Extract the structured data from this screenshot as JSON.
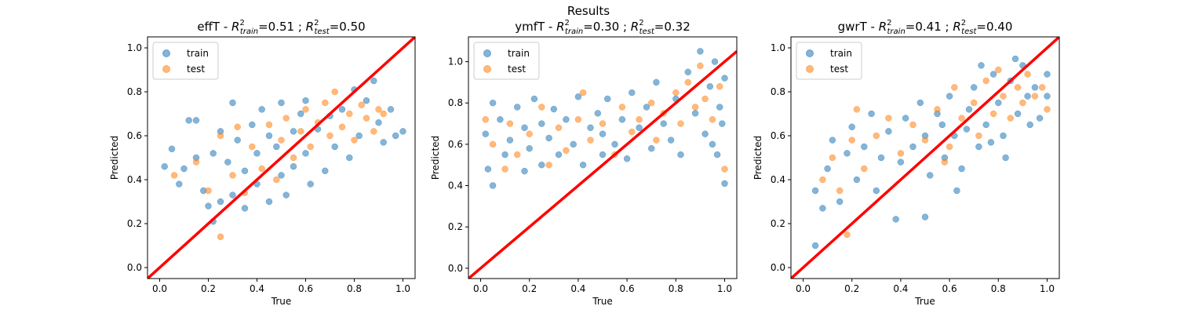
{
  "figure": {
    "suptitle": "Results"
  },
  "chart_data": [
    {
      "type": "scatter",
      "title": {
        "prefix": "effT - ",
        "r2train": "0.51",
        "r2test": "0.50"
      },
      "xlabel": "True",
      "ylabel": "Predicted",
      "xlim": [
        -0.05,
        1.05
      ],
      "ylim": [
        -0.05,
        1.05
      ],
      "xticks": [
        0.0,
        0.2,
        0.4,
        0.6,
        0.8,
        1.0
      ],
      "yticks": [
        0.0,
        0.2,
        0.4,
        0.6,
        0.8,
        1.0
      ],
      "legend": {
        "position": "top-left",
        "entries": [
          "train",
          "test"
        ]
      },
      "series": [
        {
          "name": "train",
          "color": "#1f77b4",
          "points": [
            [
              0.02,
              0.46
            ],
            [
              0.05,
              0.54
            ],
            [
              0.08,
              0.38
            ],
            [
              0.1,
              0.45
            ],
            [
              0.12,
              0.67
            ],
            [
              0.15,
              0.67
            ],
            [
              0.15,
              0.5
            ],
            [
              0.18,
              0.35
            ],
            [
              0.2,
              0.28
            ],
            [
              0.22,
              0.21
            ],
            [
              0.22,
              0.52
            ],
            [
              0.25,
              0.62
            ],
            [
              0.25,
              0.3
            ],
            [
              0.28,
              0.48
            ],
            [
              0.3,
              0.75
            ],
            [
              0.3,
              0.33
            ],
            [
              0.32,
              0.58
            ],
            [
              0.35,
              0.44
            ],
            [
              0.35,
              0.27
            ],
            [
              0.38,
              0.65
            ],
            [
              0.4,
              0.52
            ],
            [
              0.4,
              0.38
            ],
            [
              0.42,
              0.72
            ],
            [
              0.45,
              0.3
            ],
            [
              0.45,
              0.6
            ],
            [
              0.48,
              0.55
            ],
            [
              0.5,
              0.75
            ],
            [
              0.5,
              0.42
            ],
            [
              0.52,
              0.33
            ],
            [
              0.55,
              0.62
            ],
            [
              0.55,
              0.46
            ],
            [
              0.58,
              0.7
            ],
            [
              0.6,
              0.52
            ],
            [
              0.6,
              0.76
            ],
            [
              0.62,
              0.38
            ],
            [
              0.65,
              0.63
            ],
            [
              0.68,
              0.44
            ],
            [
              0.7,
              0.69
            ],
            [
              0.72,
              0.55
            ],
            [
              0.75,
              0.72
            ],
            [
              0.78,
              0.5
            ],
            [
              0.8,
              0.81
            ],
            [
              0.82,
              0.6
            ],
            [
              0.85,
              0.76
            ],
            [
              0.88,
              0.85
            ],
            [
              0.9,
              0.66
            ],
            [
              0.92,
              0.57
            ],
            [
              0.95,
              0.72
            ],
            [
              0.97,
              0.6
            ],
            [
              1.0,
              0.62
            ]
          ]
        },
        {
          "name": "test",
          "color": "#ff7f0e",
          "points": [
            [
              0.06,
              0.42
            ],
            [
              0.15,
              0.48
            ],
            [
              0.2,
              0.35
            ],
            [
              0.25,
              0.14
            ],
            [
              0.25,
              0.6
            ],
            [
              0.3,
              0.42
            ],
            [
              0.32,
              0.64
            ],
            [
              0.35,
              0.34
            ],
            [
              0.38,
              0.55
            ],
            [
              0.42,
              0.45
            ],
            [
              0.45,
              0.65
            ],
            [
              0.48,
              0.4
            ],
            [
              0.5,
              0.58
            ],
            [
              0.52,
              0.68
            ],
            [
              0.55,
              0.5
            ],
            [
              0.58,
              0.62
            ],
            [
              0.6,
              0.72
            ],
            [
              0.62,
              0.55
            ],
            [
              0.65,
              0.66
            ],
            [
              0.68,
              0.75
            ],
            [
              0.7,
              0.6
            ],
            [
              0.72,
              0.8
            ],
            [
              0.75,
              0.64
            ],
            [
              0.78,
              0.7
            ],
            [
              0.8,
              0.58
            ],
            [
              0.83,
              0.74
            ],
            [
              0.85,
              0.68
            ],
            [
              0.88,
              0.62
            ],
            [
              0.9,
              0.72
            ],
            [
              0.92,
              0.7
            ]
          ]
        }
      ],
      "reference_line": {
        "from": [
          -0.05,
          -0.05
        ],
        "to": [
          1.05,
          1.05
        ],
        "color": "#ff0000"
      }
    },
    {
      "type": "scatter",
      "title": {
        "prefix": "ymfT - ",
        "r2train": "0.30",
        "r2test": "0.32"
      },
      "xlabel": "True",
      "ylabel": "Predicted",
      "xlim": [
        -0.05,
        1.05
      ],
      "ylim": [
        -0.05,
        1.12
      ],
      "xticks": [
        0.0,
        0.2,
        0.4,
        0.6,
        0.8,
        1.0
      ],
      "yticks": [
        0.0,
        0.2,
        0.4,
        0.6,
        0.8,
        1.0
      ],
      "legend": {
        "position": "top-left",
        "entries": [
          "train",
          "test"
        ]
      },
      "series": [
        {
          "name": "train",
          "color": "#1f77b4",
          "points": [
            [
              0.02,
              0.65
            ],
            [
              0.03,
              0.48
            ],
            [
              0.05,
              0.8
            ],
            [
              0.05,
              0.4
            ],
            [
              0.08,
              0.72
            ],
            [
              0.1,
              0.55
            ],
            [
              0.12,
              0.62
            ],
            [
              0.15,
              0.78
            ],
            [
              0.18,
              0.68
            ],
            [
              0.18,
              0.47
            ],
            [
              0.2,
              0.58
            ],
            [
              0.22,
              0.82
            ],
            [
              0.25,
              0.7
            ],
            [
              0.25,
              0.5
            ],
            [
              0.28,
              0.63
            ],
            [
              0.3,
              0.77
            ],
            [
              0.32,
              0.55
            ],
            [
              0.35,
              0.72
            ],
            [
              0.38,
              0.6
            ],
            [
              0.4,
              0.83
            ],
            [
              0.42,
              0.5
            ],
            [
              0.45,
              0.68
            ],
            [
              0.48,
              0.75
            ],
            [
              0.5,
              0.55
            ],
            [
              0.5,
              0.65
            ],
            [
              0.52,
              0.82
            ],
            [
              0.55,
              0.6
            ],
            [
              0.58,
              0.72
            ],
            [
              0.6,
              0.53
            ],
            [
              0.62,
              0.85
            ],
            [
              0.65,
              0.68
            ],
            [
              0.68,
              0.78
            ],
            [
              0.7,
              0.58
            ],
            [
              0.72,
              0.9
            ],
            [
              0.75,
              0.7
            ],
            [
              0.78,
              0.62
            ],
            [
              0.8,
              0.82
            ],
            [
              0.82,
              0.55
            ],
            [
              0.85,
              0.95
            ],
            [
              0.88,
              0.75
            ],
            [
              0.9,
              1.05
            ],
            [
              0.92,
              0.65
            ],
            [
              0.94,
              0.88
            ],
            [
              0.96,
              1.0
            ],
            [
              0.97,
              0.55
            ],
            [
              0.98,
              0.78
            ],
            [
              1.0,
              0.41
            ],
            [
              1.0,
              0.92
            ],
            [
              0.99,
              0.7
            ],
            [
              0.95,
              0.6
            ]
          ]
        },
        {
          "name": "test",
          "color": "#ff7f0e",
          "points": [
            [
              0.02,
              0.72
            ],
            [
              0.05,
              0.6
            ],
            [
              0.1,
              0.48
            ],
            [
              0.12,
              0.7
            ],
            [
              0.15,
              0.55
            ],
            [
              0.2,
              0.65
            ],
            [
              0.25,
              0.78
            ],
            [
              0.28,
              0.5
            ],
            [
              0.32,
              0.68
            ],
            [
              0.35,
              0.57
            ],
            [
              0.4,
              0.72
            ],
            [
              0.42,
              0.85
            ],
            [
              0.45,
              0.62
            ],
            [
              0.5,
              0.7
            ],
            [
              0.55,
              0.55
            ],
            [
              0.58,
              0.78
            ],
            [
              0.62,
              0.66
            ],
            [
              0.65,
              0.72
            ],
            [
              0.7,
              0.8
            ],
            [
              0.72,
              0.62
            ],
            [
              0.75,
              0.75
            ],
            [
              0.8,
              0.85
            ],
            [
              0.82,
              0.7
            ],
            [
              0.85,
              0.9
            ],
            [
              0.88,
              0.78
            ],
            [
              0.9,
              0.98
            ],
            [
              0.92,
              0.82
            ],
            [
              0.95,
              0.72
            ],
            [
              0.98,
              0.88
            ],
            [
              1.0,
              0.48
            ]
          ]
        }
      ],
      "reference_line": {
        "from": [
          -0.05,
          -0.05
        ],
        "to": [
          1.05,
          1.05
        ],
        "color": "#ff0000"
      }
    },
    {
      "type": "scatter",
      "title": {
        "prefix": "gwrT - ",
        "r2train": "0.41",
        "r2test": "0.40"
      },
      "xlabel": "True",
      "ylabel": "Predicted",
      "xlim": [
        -0.05,
        1.05
      ],
      "ylim": [
        -0.05,
        1.05
      ],
      "xticks": [
        0.0,
        0.2,
        0.4,
        0.6,
        0.8,
        1.0
      ],
      "yticks": [
        0.0,
        0.2,
        0.4,
        0.6,
        0.8,
        1.0
      ],
      "legend": {
        "position": "top-left",
        "entries": [
          "train",
          "test"
        ]
      },
      "series": [
        {
          "name": "train",
          "color": "#1f77b4",
          "points": [
            [
              0.05,
              0.1
            ],
            [
              0.05,
              0.35
            ],
            [
              0.08,
              0.27
            ],
            [
              0.1,
              0.45
            ],
            [
              0.12,
              0.58
            ],
            [
              0.15,
              0.3
            ],
            [
              0.18,
              0.52
            ],
            [
              0.2,
              0.64
            ],
            [
              0.22,
              0.4
            ],
            [
              0.25,
              0.55
            ],
            [
              0.28,
              0.7
            ],
            [
              0.3,
              0.35
            ],
            [
              0.32,
              0.5
            ],
            [
              0.35,
              0.62
            ],
            [
              0.38,
              0.22
            ],
            [
              0.4,
              0.48
            ],
            [
              0.42,
              0.68
            ],
            [
              0.45,
              0.55
            ],
            [
              0.48,
              0.75
            ],
            [
              0.5,
              0.23
            ],
            [
              0.5,
              0.6
            ],
            [
              0.52,
              0.42
            ],
            [
              0.55,
              0.7
            ],
            [
              0.58,
              0.5
            ],
            [
              0.6,
              0.78
            ],
            [
              0.62,
              0.6
            ],
            [
              0.65,
              0.45
            ],
            [
              0.68,
              0.72
            ],
            [
              0.7,
              0.82
            ],
            [
              0.72,
              0.55
            ],
            [
              0.75,
              0.65
            ],
            [
              0.78,
              0.88
            ],
            [
              0.8,
              0.75
            ],
            [
              0.82,
              0.6
            ],
            [
              0.85,
              0.85
            ],
            [
              0.88,
              0.7
            ],
            [
              0.9,
              0.92
            ],
            [
              0.92,
              0.78
            ],
            [
              0.95,
              0.82
            ],
            [
              0.97,
              0.68
            ],
            [
              1.0,
              0.78
            ],
            [
              1.0,
              0.88
            ],
            [
              0.93,
              0.65
            ],
            [
              0.87,
              0.95
            ],
            [
              0.83,
              0.5
            ],
            [
              0.77,
              0.57
            ],
            [
              0.73,
              0.92
            ],
            [
              0.67,
              0.63
            ],
            [
              0.63,
              0.35
            ],
            [
              0.57,
              0.65
            ]
          ]
        },
        {
          "name": "test",
          "color": "#ff7f0e",
          "points": [
            [
              0.08,
              0.4
            ],
            [
              0.12,
              0.5
            ],
            [
              0.15,
              0.35
            ],
            [
              0.2,
              0.58
            ],
            [
              0.22,
              0.72
            ],
            [
              0.25,
              0.45
            ],
            [
              0.3,
              0.6
            ],
            [
              0.35,
              0.68
            ],
            [
              0.4,
              0.52
            ],
            [
              0.45,
              0.65
            ],
            [
              0.5,
              0.58
            ],
            [
              0.55,
              0.72
            ],
            [
              0.6,
              0.55
            ],
            [
              0.62,
              0.82
            ],
            [
              0.65,
              0.68
            ],
            [
              0.7,
              0.75
            ],
            [
              0.72,
              0.6
            ],
            [
              0.75,
              0.85
            ],
            [
              0.78,
              0.7
            ],
            [
              0.8,
              0.9
            ],
            [
              0.82,
              0.78
            ],
            [
              0.85,
              0.68
            ],
            [
              0.88,
              0.82
            ],
            [
              0.9,
              0.75
            ],
            [
              0.92,
              0.88
            ],
            [
              0.95,
              0.78
            ],
            [
              0.98,
              0.82
            ],
            [
              1.0,
              0.72
            ],
            [
              0.58,
              0.48
            ],
            [
              0.18,
              0.15
            ]
          ]
        }
      ],
      "reference_line": {
        "from": [
          -0.05,
          -0.05
        ],
        "to": [
          1.05,
          1.05
        ],
        "color": "#ff0000"
      }
    }
  ]
}
